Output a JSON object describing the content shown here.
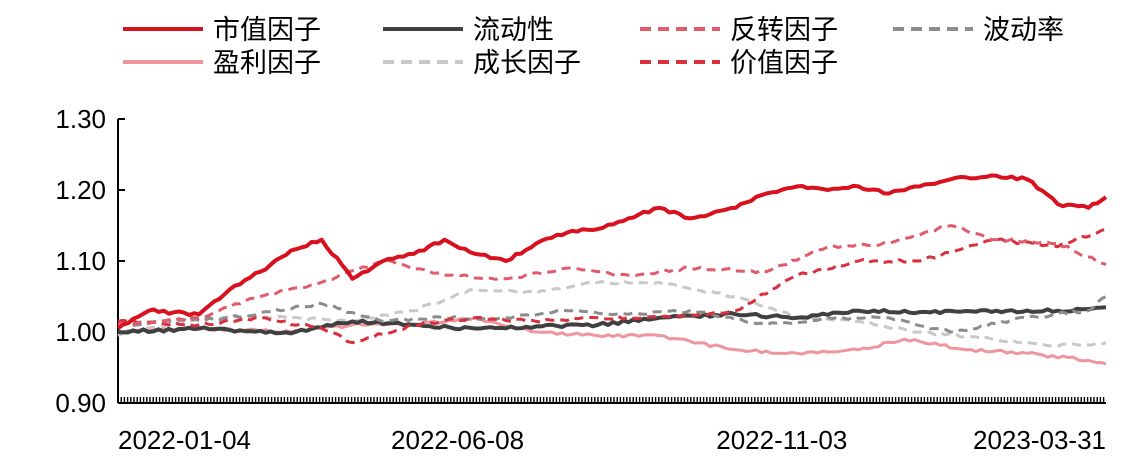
{
  "chart_data": {
    "type": "line",
    "title": "",
    "xlabel": "",
    "ylabel": "",
    "x_tick_labels": [
      "2022-01-04",
      "2022-06-08",
      "2022-11-03",
      "2023-03-31"
    ],
    "x_tick_positions": [
      "2022-01-04",
      "2022-06-08",
      "2022-11-03",
      "2023-03-31"
    ],
    "x_range": [
      "2022-01-04",
      "2023-03-31"
    ],
    "ylim": [
      0.9,
      1.3
    ],
    "y_ticks": [
      "0.90",
      "1.00",
      "1.10",
      "1.20",
      "1.30"
    ],
    "grid": false,
    "legend_position": "top",
    "series": [
      {
        "name": "市值因子",
        "color": "#d9101e",
        "dash": "solid",
        "width": 4,
        "x": [
          "2022-01-04",
          "2022-01-18",
          "2022-02-10",
          "2022-02-24",
          "2022-03-10",
          "2022-03-24",
          "2022-04-07",
          "2022-04-21",
          "2022-05-05",
          "2022-05-19",
          "2022-06-02",
          "2022-06-16",
          "2022-06-30",
          "2022-07-14",
          "2022-07-28",
          "2022-08-11",
          "2022-08-25",
          "2022-09-08",
          "2022-09-22",
          "2022-10-13",
          "2022-10-27",
          "2022-11-10",
          "2022-11-24",
          "2022-12-08",
          "2022-12-22",
          "2023-01-05",
          "2023-01-19",
          "2023-02-09",
          "2023-02-23",
          "2023-03-09",
          "2023-03-23",
          "2023-03-31"
        ],
        "values": [
          1.005,
          1.03,
          1.025,
          1.06,
          1.085,
          1.115,
          1.13,
          1.075,
          1.1,
          1.11,
          1.13,
          1.11,
          1.1,
          1.125,
          1.14,
          1.145,
          1.16,
          1.175,
          1.16,
          1.175,
          1.195,
          1.205,
          1.2,
          1.205,
          1.195,
          1.205,
          1.215,
          1.22,
          1.215,
          1.18,
          1.175,
          1.19
        ]
      },
      {
        "name": "流动性",
        "color": "#404040",
        "dash": "solid",
        "width": 4,
        "x": [
          "2022-01-04",
          "2022-02-10",
          "2022-03-24",
          "2022-04-21",
          "2022-05-19",
          "2022-06-16",
          "2022-07-14",
          "2022-08-11",
          "2022-09-08",
          "2022-10-13",
          "2022-11-10",
          "2022-12-08",
          "2023-01-05",
          "2023-02-09",
          "2023-03-09",
          "2023-03-31"
        ],
        "values": [
          1.0,
          1.005,
          0.998,
          1.015,
          1.01,
          1.005,
          1.008,
          1.01,
          1.02,
          1.025,
          1.02,
          1.03,
          1.028,
          1.03,
          1.03,
          1.035
        ]
      },
      {
        "name": "反转因子",
        "color": "#e05c6c",
        "dash": "dashed",
        "width": 3,
        "x": [
          "2022-01-04",
          "2022-02-10",
          "2022-03-10",
          "2022-04-07",
          "2022-05-05",
          "2022-06-02",
          "2022-06-30",
          "2022-07-28",
          "2022-08-25",
          "2022-09-22",
          "2022-10-27",
          "2022-11-24",
          "2022-12-22",
          "2023-01-19",
          "2023-02-09",
          "2023-03-09",
          "2023-03-31"
        ],
        "values": [
          1.01,
          1.02,
          1.05,
          1.07,
          1.1,
          1.08,
          1.075,
          1.09,
          1.08,
          1.09,
          1.085,
          1.12,
          1.125,
          1.15,
          1.13,
          1.125,
          1.095
        ]
      },
      {
        "name": "波动率",
        "color": "#8c8c8c",
        "dash": "dashed",
        "width": 3,
        "x": [
          "2022-01-04",
          "2022-02-24",
          "2022-04-07",
          "2022-05-05",
          "2022-06-02",
          "2022-06-30",
          "2022-07-28",
          "2022-08-25",
          "2022-09-22",
          "2022-10-27",
          "2022-11-24",
          "2022-12-22",
          "2023-01-19",
          "2023-02-23",
          "2023-03-23",
          "2023-03-31"
        ],
        "values": [
          1.01,
          1.02,
          1.04,
          1.015,
          1.02,
          1.02,
          1.03,
          1.025,
          1.03,
          1.01,
          1.02,
          1.02,
          1.0,
          1.02,
          1.03,
          1.05
        ]
      },
      {
        "name": "盈利因子",
        "color": "#ee959e",
        "dash": "solid",
        "width": 3,
        "x": [
          "2022-01-04",
          "2022-02-10",
          "2022-03-24",
          "2022-04-21",
          "2022-05-19",
          "2022-06-16",
          "2022-07-14",
          "2022-08-11",
          "2022-09-08",
          "2022-10-13",
          "2022-11-10",
          "2022-12-08",
          "2022-12-29",
          "2023-01-26",
          "2023-02-23",
          "2023-03-23",
          "2023-03-31"
        ],
        "values": [
          1.0,
          1.005,
          1.0,
          1.01,
          1.01,
          1.02,
          1.0,
          0.995,
          0.995,
          0.975,
          0.97,
          0.975,
          0.99,
          0.975,
          0.97,
          0.96,
          0.955
        ]
      },
      {
        "name": "成长因子",
        "color": "#c8c8c8",
        "dash": "dashed",
        "width": 3,
        "x": [
          "2022-01-04",
          "2022-02-10",
          "2022-03-24",
          "2022-04-21",
          "2022-05-19",
          "2022-06-16",
          "2022-07-14",
          "2022-08-11",
          "2022-09-08",
          "2022-10-13",
          "2022-11-10",
          "2022-12-08",
          "2023-01-05",
          "2023-02-09",
          "2023-03-09",
          "2023-03-31"
        ],
        "values": [
          0.995,
          1.02,
          1.02,
          1.015,
          1.03,
          1.06,
          1.055,
          1.07,
          1.07,
          1.05,
          1.02,
          1.015,
          1.0,
          0.99,
          0.98,
          0.985
        ]
      },
      {
        "name": "价值因子",
        "color": "#d9303e",
        "dash": "dashed",
        "width": 3,
        "x": [
          "2022-01-04",
          "2022-02-10",
          "2022-03-10",
          "2022-04-07",
          "2022-04-21",
          "2022-05-19",
          "2022-06-16",
          "2022-07-14",
          "2022-08-11",
          "2022-09-08",
          "2022-10-13",
          "2022-11-10",
          "2022-12-08",
          "2023-01-05",
          "2023-02-09",
          "2023-03-09",
          "2023-03-31"
        ],
        "values": [
          1.015,
          1.01,
          1.02,
          1.005,
          0.985,
          1.01,
          1.02,
          1.015,
          1.02,
          1.02,
          1.03,
          1.08,
          1.1,
          1.1,
          1.13,
          1.12,
          1.145
        ]
      }
    ]
  }
}
